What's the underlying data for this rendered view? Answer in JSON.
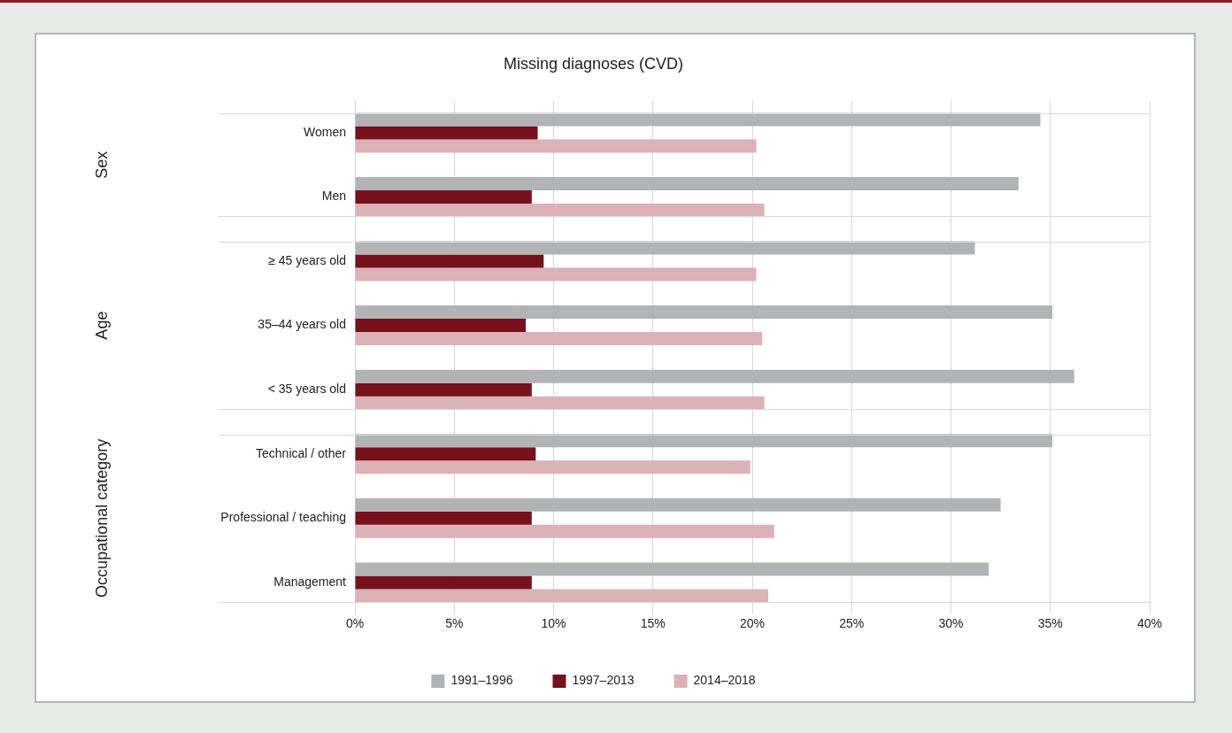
{
  "chart_data": {
    "type": "bar",
    "orientation": "horizontal",
    "title": "Missing diagnoses (CVD)",
    "categories": [
      "Women",
      "Men",
      "≥ 45 years old",
      "35–44 years old",
      "< 35 years old",
      "Technical / other",
      "Professional / teaching",
      "Management"
    ],
    "series": [
      {
        "name": "1991–1996",
        "color": "#b2b3b4",
        "values": [
          34.5,
          33.4,
          31.2,
          35.1,
          36.2,
          35.1,
          32.5,
          31.9
        ]
      },
      {
        "name": "1997–2013",
        "color": "#76111d",
        "values": [
          9.2,
          8.9,
          9.5,
          8.6,
          8.9,
          9.1,
          8.9,
          8.9
        ]
      },
      {
        "name": "2014–2018",
        "color": "#dcb1b7",
        "values": [
          20.2,
          20.6,
          20.2,
          20.5,
          20.6,
          19.9,
          21.1,
          20.8
        ]
      }
    ],
    "xlim": [
      0,
      40
    ],
    "xticks": [
      {
        "value": 0,
        "label": "0%"
      },
      {
        "value": 5,
        "label": "5%"
      },
      {
        "value": 10,
        "label": "10%"
      },
      {
        "value": 15,
        "label": "15%"
      },
      {
        "value": 20,
        "label": "20%"
      },
      {
        "value": 25,
        "label": "25%"
      },
      {
        "value": 30,
        "label": "30%"
      },
      {
        "value": 35,
        "label": "35%"
      },
      {
        "value": 40,
        "label": "40%"
      }
    ],
    "annotations": [
      "Sex",
      "Age",
      "Occupational category"
    ],
    "grid": "x",
    "legend": "bottom"
  }
}
